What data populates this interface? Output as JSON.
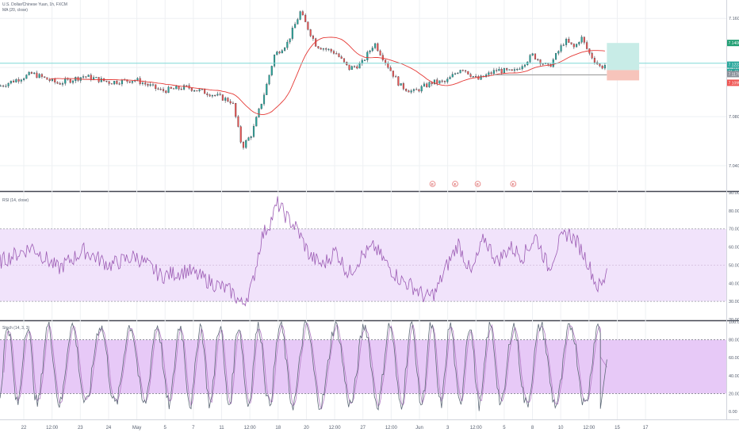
{
  "colors": {
    "up": "#26a69a",
    "down": "#ef5350",
    "ma": "#e53935",
    "rsi_line": "#9c5cb4",
    "rsi_band": "#f1e3fb",
    "stoch_k": "#5e6a78",
    "stoch_d": "#b47dc6",
    "stoch_band": "#e7c9f7",
    "hline": "#7fd8d6",
    "grid": "#eef0f3",
    "axis_text": "#555e6e",
    "long_target": "#c8ece7",
    "long_stop": "#f7c4bb",
    "label_green": "#1f9e72",
    "label_teal": "#26a69a",
    "label_red": "#ef5350"
  },
  "legend": {
    "main": "U.S. Dollar/Chinese Yuan, 1h, FXCM",
    "ma": "MA (20, close)",
    "rsi": "RSI (14, close)",
    "stoch": "Stoch (14, 3, 3)"
  },
  "price_labels": {
    "target": "7.1400",
    "current": "7.1223",
    "countdown": "31:48",
    "entry": "7.1179",
    "stop": "7.1095"
  },
  "event_markers": [
    "E",
    "E",
    "E",
    "E"
  ],
  "chart_data": [
    {
      "type": "candlestick",
      "title": "U.S. Dollar/Chinese Yuan, 1h, FXCM",
      "overlay": "MA (20, close)",
      "y_ticks": [
        "7.1600",
        "7.1200",
        "7.0800",
        "7.0400"
      ],
      "ylim": [
        7.02,
        7.175
      ],
      "x_range_hours": [
        -690,
        435
      ],
      "horizontal_line": 7.1235,
      "path": [
        [
          -690,
          7.105
        ],
        [
          -640,
          7.115
        ],
        [
          -600,
          7.107
        ],
        [
          -560,
          7.113
        ],
        [
          -520,
          7.108
        ],
        [
          -480,
          7.11
        ],
        [
          -440,
          7.101
        ],
        [
          -400,
          7.104
        ],
        [
          -360,
          7.098
        ],
        [
          -330,
          7.092
        ],
        [
          -315,
          7.055
        ],
        [
          -300,
          7.066
        ],
        [
          -280,
          7.1
        ],
        [
          -265,
          7.13
        ],
        [
          -245,
          7.14
        ],
        [
          -225,
          7.165
        ],
        [
          -200,
          7.138
        ],
        [
          -170,
          7.132
        ],
        [
          -150,
          7.119
        ],
        [
          -130,
          7.123
        ],
        [
          -110,
          7.14
        ],
        [
          -90,
          7.122
        ],
        [
          -70,
          7.105
        ],
        [
          -50,
          7.1
        ],
        [
          -20,
          7.108
        ],
        [
          0,
          7.108
        ],
        [
          25,
          7.12
        ],
        [
          50,
          7.11
        ],
        [
          80,
          7.118
        ],
        [
          105,
          7.116
        ],
        [
          135,
          7.13
        ],
        [
          160,
          7.12
        ],
        [
          185,
          7.142
        ],
        [
          200,
          7.136
        ],
        [
          210,
          7.145
        ],
        [
          222,
          7.132
        ],
        [
          240,
          7.12
        ],
        [
          250,
          7.123
        ]
      ],
      "hline_short": {
        "price": 7.114,
        "from_hour": 75,
        "to_hour": 250
      },
      "position": {
        "entry": 7.1179,
        "target": 7.14,
        "stop": 7.1095,
        "from_hour": 250,
        "to_hour": 300
      }
    },
    {
      "type": "line",
      "title": "RSI (14, close)",
      "y_ticks": [
        "90.00",
        "80.00",
        "70.00",
        "60.00",
        "50.00",
        "40.00",
        "30.00",
        "20.00"
      ],
      "ylim": [
        20,
        90
      ],
      "band": [
        30,
        70
      ],
      "path": [
        [
          -690,
          52
        ],
        [
          -640,
          60
        ],
        [
          -600,
          48
        ],
        [
          -560,
          58
        ],
        [
          -520,
          50
        ],
        [
          -480,
          55
        ],
        [
          -440,
          44
        ],
        [
          -400,
          47
        ],
        [
          -360,
          40
        ],
        [
          -330,
          35
        ],
        [
          -315,
          28
        ],
        [
          -300,
          38
        ],
        [
          -285,
          65
        ],
        [
          -270,
          75
        ],
        [
          -260,
          84
        ],
        [
          -245,
          76
        ],
        [
          -230,
          70
        ],
        [
          -210,
          55
        ],
        [
          -190,
          50
        ],
        [
          -170,
          58
        ],
        [
          -150,
          45
        ],
        [
          -130,
          55
        ],
        [
          -110,
          60
        ],
        [
          -90,
          50
        ],
        [
          -70,
          42
        ],
        [
          -50,
          38
        ],
        [
          -30,
          32
        ],
        [
          -15,
          35
        ],
        [
          0,
          48
        ],
        [
          20,
          62
        ],
        [
          40,
          45
        ],
        [
          60,
          65
        ],
        [
          80,
          52
        ],
        [
          100,
          60
        ],
        [
          120,
          55
        ],
        [
          140,
          66
        ],
        [
          160,
          48
        ],
        [
          175,
          62
        ],
        [
          190,
          68
        ],
        [
          205,
          62
        ],
        [
          220,
          52
        ],
        [
          235,
          38
        ],
        [
          245,
          40
        ],
        [
          250,
          50
        ]
      ]
    },
    {
      "type": "line",
      "title": "Stoch (14, 3, 3)",
      "y_ticks": [
        "100.00",
        "80.00",
        "60.00",
        "40.00",
        "20.00",
        "0.00"
      ],
      "ylim": [
        -8,
        100
      ],
      "band": [
        20,
        80
      ],
      "oscillation": {
        "center": 52,
        "amplitude": 44,
        "k_period_hours": 36
      },
      "end_points": [
        [
          240,
          3
        ],
        [
          250,
          58
        ]
      ]
    }
  ],
  "x_axis": {
    "labels": [
      "22",
      "12:00",
      "23",
      "24",
      "May",
      "5",
      "7",
      "11",
      "12:00",
      "18",
      "20",
      "12:00",
      "27",
      "12:00",
      "Jun",
      "3",
      "12:00",
      "5",
      "8",
      "10",
      "12:00",
      "15",
      "17"
    ]
  }
}
